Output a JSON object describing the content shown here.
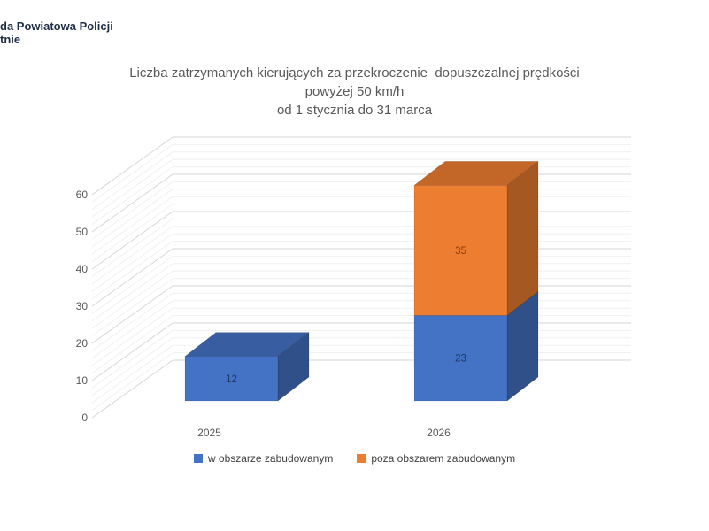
{
  "page": {
    "background": "#ffffff"
  },
  "header": {
    "org_line1": "da Powiatowa Policji",
    "org_line2": "tnie",
    "text_color": "#1f2e45"
  },
  "chart_title": {
    "line1": "Liczba zatrzymanych kierujących za przekroczenie  dopuszczalnej prędkości",
    "line2": "powyżej 50 km/h",
    "line3": "od 1 stycznia do 31 marca",
    "color": "#595959"
  },
  "chart_data": {
    "type": "bar",
    "subtype": "3d-stacked-column",
    "title": "Liczba zatrzymanych kierujących za przekroczenie dopuszczalnej prędkości powyżej 50 km/h od 1 stycznia do 31 marca",
    "categories": [
      "2025",
      "2026"
    ],
    "series": [
      {
        "name": "w obszarze zabudowanym",
        "color": "#4472C4",
        "label_color": "#1F3864",
        "values": [
          12,
          23
        ]
      },
      {
        "name": "poza obszarem zabudowanym",
        "color": "#ED7D31",
        "label_color": "#843C0C",
        "values": [
          0,
          35
        ]
      }
    ],
    "data_labels_visible": true,
    "data_labels_shown": [
      12,
      23,
      35
    ],
    "xlabel": "",
    "ylabel": "",
    "ylim": [
      0,
      60
    ],
    "y_ticks": [
      0,
      10,
      20,
      30,
      40,
      50,
      60
    ],
    "y_major_step": 10,
    "y_minor_step": 2,
    "grid": true,
    "legend_position": "bottom",
    "axis_text_color": "#595959",
    "gridline_major_color": "#d6d6d6",
    "gridline_minor_color": "#f0f0f0"
  }
}
